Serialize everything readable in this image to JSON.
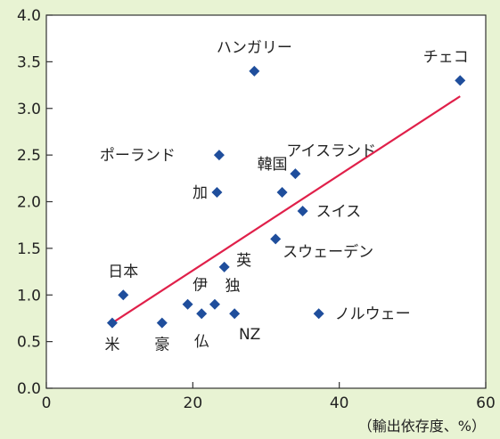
{
  "chart_data": {
    "type": "scatter",
    "title": "",
    "xlabel": "（輸出依存度、%）",
    "ylabel": "",
    "xlim": [
      0,
      60
    ],
    "ylim": [
      0.0,
      4.0
    ],
    "x_ticks": [
      0,
      20,
      40,
      60
    ],
    "y_ticks": [
      "0.0",
      "0.5",
      "1.0",
      "1.5",
      "2.0",
      "2.5",
      "3.0",
      "3.5",
      "4.0"
    ],
    "grid": false,
    "legend": "none",
    "marker": "diamond",
    "colors": {
      "marker": "#1f4e9c",
      "trendline": "#e0204a",
      "background": "#e8f3d3",
      "plot_area": "#ffffff"
    },
    "points": [
      {
        "label": "米",
        "x": 9,
        "y": 0.7
      },
      {
        "label": "日本",
        "x": 10.5,
        "y": 1.0
      },
      {
        "label": "豪",
        "x": 15.8,
        "y": 0.7
      },
      {
        "label": "伊",
        "x": 19.3,
        "y": 0.9
      },
      {
        "label": "仏",
        "x": 21.2,
        "y": 0.8
      },
      {
        "label": "独",
        "x": 23,
        "y": 0.9
      },
      {
        "label": "英",
        "x": 24.3,
        "y": 1.3
      },
      {
        "label": "NZ",
        "x": 25.7,
        "y": 0.8
      },
      {
        "label": "加",
        "x": 23.3,
        "y": 2.1
      },
      {
        "label": "ポーランド",
        "x": 23.6,
        "y": 2.5
      },
      {
        "label": "ハンガリー",
        "x": 28.4,
        "y": 3.4
      },
      {
        "label": "スウェーデン",
        "x": 31.3,
        "y": 1.6
      },
      {
        "label": "韓国",
        "x": 32.2,
        "y": 2.1
      },
      {
        "label": "アイスランド",
        "x": 34,
        "y": 2.3
      },
      {
        "label": "スイス",
        "x": 35,
        "y": 1.9
      },
      {
        "label": "ノルウェー",
        "x": 37.2,
        "y": 0.8
      },
      {
        "label": "チェコ",
        "x": 56.5,
        "y": 3.3
      }
    ],
    "trendline": {
      "x": [
        9,
        56.5
      ],
      "y": [
        0.7,
        3.13
      ]
    }
  }
}
